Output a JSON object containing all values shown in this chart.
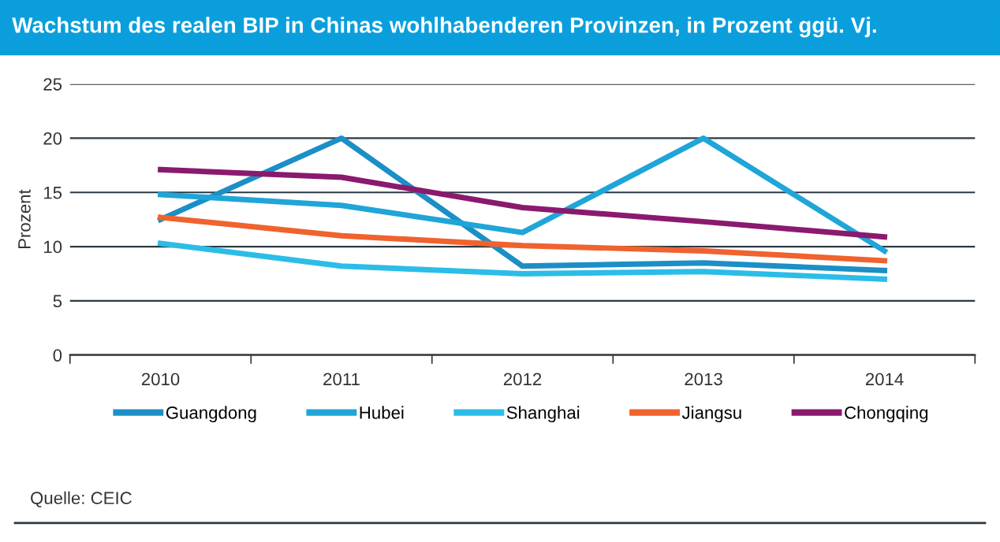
{
  "chart_data": {
    "type": "line",
    "title": "Wachstum des realen BIP in Chinas wohlhabenderen Provinzen, in Prozent ggü. Vj.",
    "ylabel": "Prozent",
    "categories": [
      "2010",
      "2011",
      "2012",
      "2013",
      "2014"
    ],
    "series": [
      {
        "name": "Guangdong",
        "color": "#1b8fc6",
        "values": [
          12.5,
          20,
          8.2,
          8.5,
          7.8
        ]
      },
      {
        "name": "Hubei",
        "color": "#1fa5d8",
        "values": [
          14.8,
          13.8,
          11.3,
          20,
          9.6
        ]
      },
      {
        "name": "Shanghai",
        "color": "#2bbde8",
        "values": [
          10.3,
          8.2,
          7.5,
          7.7,
          7.0
        ]
      },
      {
        "name": "Jiangsu",
        "color": "#f0622e",
        "values": [
          12.7,
          11.0,
          10.1,
          9.6,
          8.7
        ]
      },
      {
        "name": "Chongqing",
        "color": "#8a1a6e",
        "values": [
          17.1,
          16.4,
          13.6,
          12.3,
          10.9
        ]
      }
    ],
    "ylim": [
      0,
      25
    ],
    "yticks": [
      0,
      5,
      10,
      15,
      20,
      25
    ],
    "grid": "y",
    "legend": "bottom",
    "marker": "none",
    "line_style": "solid",
    "annotations": [
      "Quelle: CEIC"
    ]
  }
}
